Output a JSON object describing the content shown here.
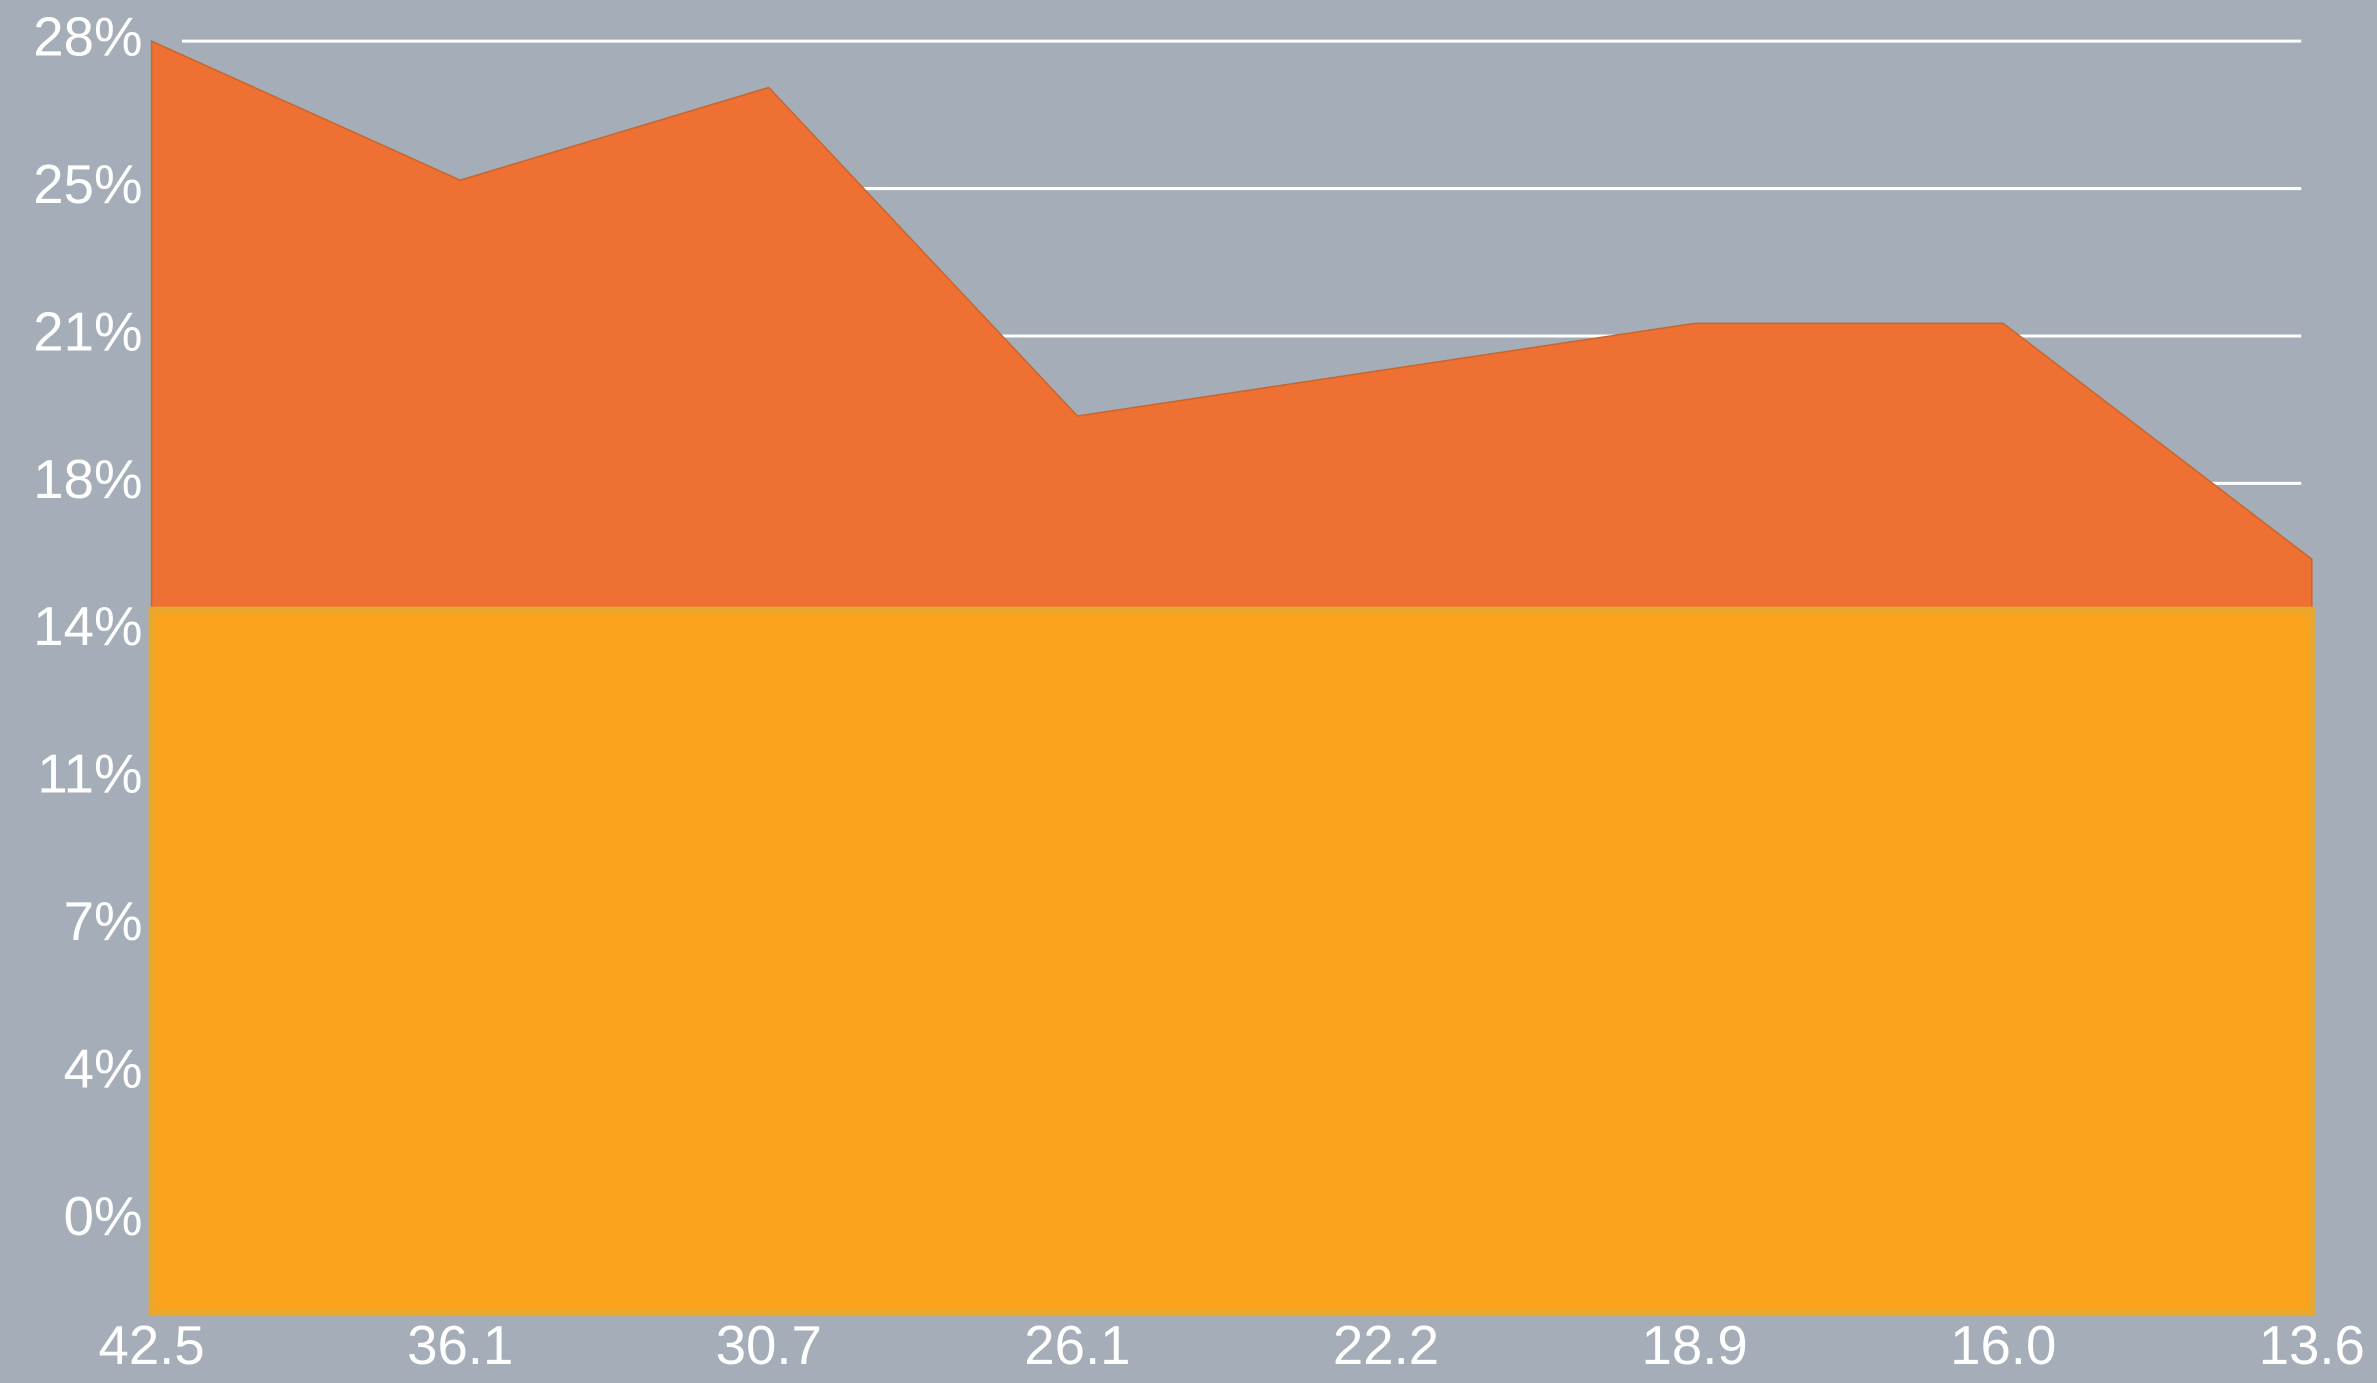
{
  "chart_data": {
    "type": "area",
    "categories": [
      "42.5",
      "36.1",
      "30.7",
      "26.1",
      "22.2",
      "18.9",
      "16.0",
      "13.6"
    ],
    "series": [
      {
        "color": "#ee7033",
        "values": [
          28,
          24.7,
          26.9,
          19.1,
          20.2,
          21.3,
          21.3,
          15.7
        ]
      },
      {
        "color": "#fba51c",
        "values": [
          14.5,
          14.5,
          14.5,
          14.5,
          14.5,
          14.5,
          14.5,
          14.5
        ]
      }
    ],
    "ylim": [
      -2.2,
      28
    ],
    "yticks": [
      {
        "value": 28,
        "label": "28%"
      },
      {
        "value": 24.5,
        "label": "25%"
      },
      {
        "value": 21,
        "label": "21%"
      },
      {
        "value": 17.5,
        "label": "18%"
      },
      {
        "value": 14,
        "label": "14%"
      },
      {
        "value": 10.5,
        "label": "11%"
      },
      {
        "value": 7,
        "label": "7%"
      },
      {
        "value": 3.5,
        "label": "4%"
      },
      {
        "value": 0,
        "label": "0%"
      }
    ],
    "grid": true
  }
}
